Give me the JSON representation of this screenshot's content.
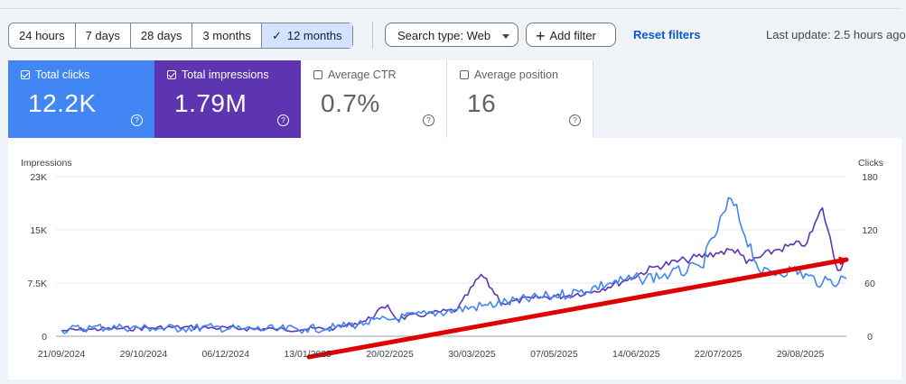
{
  "date_range": {
    "options": [
      {
        "label": "24 hours",
        "selected": false
      },
      {
        "label": "7 days",
        "selected": false
      },
      {
        "label": "28 days",
        "selected": false
      },
      {
        "label": "3 months",
        "selected": false
      },
      {
        "label": "12 months",
        "selected": true
      }
    ]
  },
  "toolbar": {
    "search_type": "Search type: Web",
    "add_filter": "Add filter",
    "reset_filters": "Reset filters",
    "last_update": "Last update: 2.5 hours ago"
  },
  "metrics": [
    {
      "label": "Total clicks",
      "value": "12.2K",
      "checked": true
    },
    {
      "label": "Total impressions",
      "value": "1.79M",
      "checked": true
    },
    {
      "label": "Average CTR",
      "value": "0.7%",
      "checked": false
    },
    {
      "label": "Average position",
      "value": "16",
      "checked": false
    }
  ],
  "colors": {
    "clicks": "#4285f4",
    "impressions": "#5e35b1",
    "annotation_arrow": "#e00000",
    "selected_range": "#d3e3fd"
  },
  "chart_data": {
    "type": "line",
    "left_axis": {
      "title": "Impressions",
      "ticks": [
        "23K",
        "15K",
        "7.5K",
        "0"
      ],
      "range": [
        0,
        23000
      ]
    },
    "right_axis": {
      "title": "Clicks",
      "ticks": [
        "180",
        "120",
        "60",
        "0"
      ],
      "range": [
        0,
        180
      ]
    },
    "x_tick_labels": [
      "21/09/2024",
      "29/10/2024",
      "06/12/2024",
      "13/01/2025",
      "20/02/2025",
      "30/03/2025",
      "07/05/2025",
      "14/06/2025",
      "22/07/2025",
      "29/08/2025"
    ],
    "grid": true,
    "series": [
      {
        "name": "Impressions",
        "axis": "left",
        "x": [
          "2024-09-21",
          "2024-10-05",
          "2024-10-19",
          "2024-11-02",
          "2024-11-16",
          "2024-11-30",
          "2024-12-14",
          "2024-12-28",
          "2025-01-11",
          "2025-01-25",
          "2025-02-08",
          "2025-02-18",
          "2025-02-22",
          "2025-03-08",
          "2025-03-22",
          "2025-04-02",
          "2025-04-12",
          "2025-04-26",
          "2025-05-10",
          "2025-05-24",
          "2025-06-07",
          "2025-06-21",
          "2025-07-05",
          "2025-07-19",
          "2025-07-29",
          "2025-08-02",
          "2025-08-16",
          "2025-08-30",
          "2025-09-06",
          "2025-09-13",
          "2025-09-17"
        ],
        "values": [
          800,
          1000,
          1100,
          1200,
          1300,
          1200,
          1100,
          1000,
          1000,
          1200,
          2200,
          4500,
          2500,
          3200,
          3800,
          8900,
          4700,
          5500,
          5800,
          6500,
          8000,
          10000,
          11000,
          12000,
          12500,
          10500,
          12500,
          13500,
          18500,
          9500,
          11000
        ]
      },
      {
        "name": "Clicks",
        "axis": "right",
        "x": [
          "2024-09-21",
          "2024-10-05",
          "2024-10-19",
          "2024-11-02",
          "2024-11-16",
          "2024-11-30",
          "2024-12-14",
          "2024-12-28",
          "2025-01-11",
          "2025-01-25",
          "2025-02-08",
          "2025-02-22",
          "2025-03-08",
          "2025-03-22",
          "2025-04-05",
          "2025-04-19",
          "2025-05-03",
          "2025-05-17",
          "2025-05-31",
          "2025-06-14",
          "2025-06-28",
          "2025-07-12",
          "2025-07-26",
          "2025-08-09",
          "2025-08-23",
          "2025-09-06",
          "2025-09-17"
        ],
        "values": [
          7,
          10,
          10,
          9,
          9,
          10,
          8,
          8,
          8,
          10,
          15,
          20,
          25,
          30,
          35,
          40,
          45,
          50,
          60,
          65,
          70,
          78,
          155,
          70,
          75,
          60,
          65
        ]
      }
    ]
  }
}
